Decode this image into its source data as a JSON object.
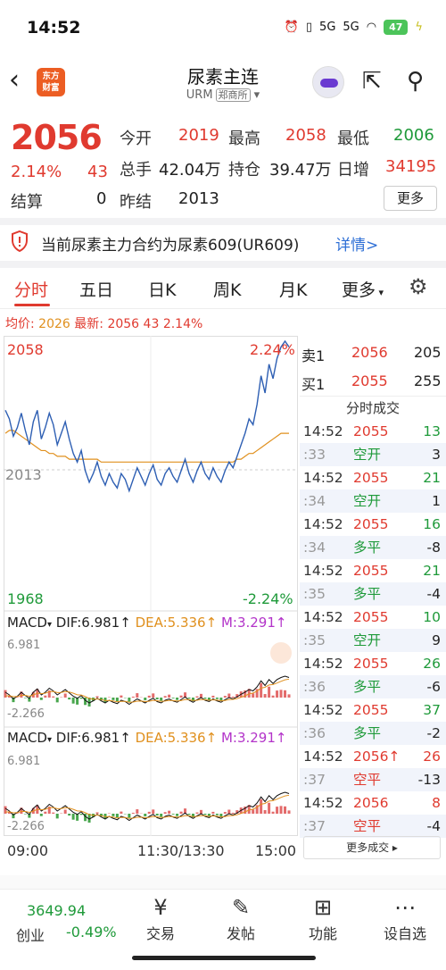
{
  "status": {
    "time": "14:52",
    "battery": "47",
    "signal1": "5G",
    "signal2": "5G"
  },
  "nav": {
    "title": "尿素主连",
    "code": "URM",
    "exchange": "郑商所",
    "logo_line1": "东方",
    "logo_line2": "财富"
  },
  "quote": {
    "price": "2056",
    "pct": "2.14%",
    "chg": "43",
    "open_lbl": "今开",
    "open": "2019",
    "high_lbl": "最高",
    "high": "2058",
    "low_lbl": "最低",
    "low": "2006",
    "vol_lbl": "总手",
    "vol": "42.04万",
    "oi_lbl": "持仓",
    "oi": "39.47万",
    "oichg_lbl": "日增",
    "oichg": "34195",
    "settle_lbl": "结算",
    "settle": "0",
    "prev_lbl": "昨结",
    "prev": "2013",
    "more": "更多"
  },
  "notice": {
    "text": "当前尿素主力合约为尿素609(UR609)",
    "link": "详情>"
  },
  "tabs": [
    "分时",
    "五日",
    "日K",
    "周K",
    "月K",
    "更多"
  ],
  "avg": {
    "avg_lbl": "均价:",
    "avg": "2026",
    "last_lbl": "最新:",
    "last": "2056",
    "chg": "43",
    "pct": "2.14%"
  },
  "chart": {
    "top_left": "2058",
    "top_right": "2.24%",
    "mid": "2013",
    "bot_left": "1968",
    "bot_right": "-2.24%",
    "macd_lbl": "MACD",
    "dif": "DIF:6.981",
    "dea": "DEA:5.336",
    "m": "M:3.291",
    "macd_top": "6.981",
    "macd_bot": "-2.266",
    "t1": "09:00",
    "t2": "11:30/13:30",
    "t3": "15:00"
  },
  "chart_data": {
    "type": "line",
    "price": [
      2034,
      2031,
      2025,
      2028,
      2033,
      2027,
      2022,
      2030,
      2034,
      2024,
      2028,
      2033,
      2029,
      2022,
      2026,
      2030,
      2024,
      2019,
      2016,
      2020,
      2013,
      2009,
      2012,
      2016,
      2011,
      2008,
      2012,
      2009,
      2007,
      2012,
      2010,
      2006,
      2010,
      2014,
      2011,
      2008,
      2012,
      2015,
      2010,
      2008,
      2012,
      2014,
      2011,
      2009,
      2013,
      2017,
      2012,
      2009,
      2013,
      2016,
      2012,
      2010,
      2014,
      2011,
      2009,
      2013,
      2016,
      2014,
      2018,
      2022,
      2026,
      2031,
      2029,
      2036,
      2046,
      2040,
      2050,
      2045,
      2052,
      2056,
      2058,
      2056
    ],
    "avg": [
      2026,
      2027,
      2027,
      2026,
      2025,
      2024,
      2023,
      2022,
      2021,
      2020,
      2020,
      2019,
      2019,
      2018,
      2018,
      2018,
      2017,
      2017,
      2017,
      2017,
      2017,
      2017,
      2017,
      2017,
      2016,
      2016,
      2016,
      2016,
      2016,
      2016,
      2016,
      2016,
      2016,
      2016,
      2016,
      2016,
      2016,
      2016,
      2016,
      2016,
      2016,
      2016,
      2016,
      2016,
      2016,
      2016,
      2016,
      2016,
      2016,
      2016,
      2016,
      2016,
      2016,
      2016,
      2016,
      2016,
      2016,
      2016,
      2017,
      2017,
      2018,
      2019,
      2019,
      2020,
      2021,
      2022,
      2023,
      2024,
      2025,
      2026,
      2026,
      2026
    ],
    "ylim": [
      1968,
      2058
    ]
  },
  "book": {
    "ask_lbl": "卖1",
    "ask": "2056",
    "ask_vol": "205",
    "bid_lbl": "买1",
    "bid": "2055",
    "bid_vol": "255",
    "title": "分时成交"
  },
  "trades": [
    {
      "t": "14:52",
      "p": "2055",
      "v": "13",
      "pc": "red",
      "vc": "green"
    },
    {
      "t": ":33",
      "p": "空开",
      "v": "3",
      "pc": "green",
      "vc": "black"
    },
    {
      "t": "14:52",
      "p": "2055",
      "v": "21",
      "pc": "red",
      "vc": "green"
    },
    {
      "t": ":34",
      "p": "空开",
      "v": "1",
      "pc": "green",
      "vc": "black"
    },
    {
      "t": "14:52",
      "p": "2055",
      "v": "16",
      "pc": "red",
      "vc": "green"
    },
    {
      "t": ":34",
      "p": "多平",
      "v": "-8",
      "pc": "green",
      "vc": "black"
    },
    {
      "t": "14:52",
      "p": "2055",
      "v": "21",
      "pc": "red",
      "vc": "green"
    },
    {
      "t": ":35",
      "p": "多平",
      "v": "-4",
      "pc": "green",
      "vc": "black"
    },
    {
      "t": "14:52",
      "p": "2055",
      "v": "10",
      "pc": "red",
      "vc": "green"
    },
    {
      "t": ":35",
      "p": "空开",
      "v": "9",
      "pc": "green",
      "vc": "black"
    },
    {
      "t": "14:52",
      "p": "2055",
      "v": "26",
      "pc": "red",
      "vc": "green"
    },
    {
      "t": ":36",
      "p": "多平",
      "v": "-6",
      "pc": "green",
      "vc": "black"
    },
    {
      "t": "14:52",
      "p": "2055",
      "v": "37",
      "pc": "red",
      "vc": "green"
    },
    {
      "t": ":36",
      "p": "多平",
      "v": "-2",
      "pc": "green",
      "vc": "black"
    },
    {
      "t": "14:52",
      "p": "2056↑",
      "v": "26",
      "pc": "red",
      "vc": "red"
    },
    {
      "t": ":37",
      "p": "空平",
      "v": "-13",
      "pc": "red",
      "vc": "black"
    },
    {
      "t": "14:52",
      "p": "2056",
      "v": "8",
      "pc": "red",
      "vc": "red"
    },
    {
      "t": ":37",
      "p": "空平",
      "v": "-4",
      "pc": "red",
      "vc": "black"
    }
  ],
  "more_trades": "更多成交",
  "bottom": {
    "index_val": "3649.94",
    "index_name": "创业",
    "index_pct": "-0.49%",
    "b1": "交易",
    "b2": "发帖",
    "b3": "功能",
    "b4": "设自选"
  },
  "colors": {
    "up": "#e03a2f",
    "down": "#1f9a3a",
    "price_line": "#2e5fb3",
    "avg_line": "#e0901e"
  }
}
